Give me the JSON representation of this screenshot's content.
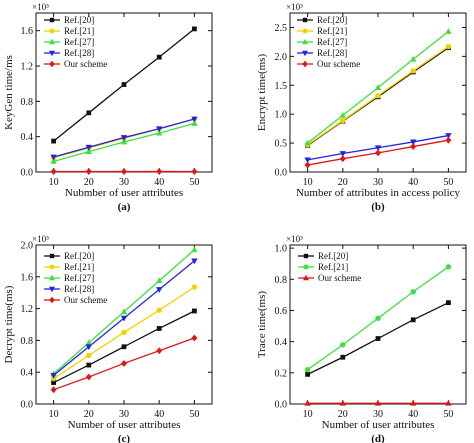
{
  "colors": {
    "ref20": "#111111",
    "ref21": "#f2d200",
    "ref27": "#3de03d",
    "ref28": "#2323e6",
    "ours": "#e01616",
    "axis": "#111111"
  },
  "chart_data": [
    {
      "type": "line",
      "panel_label": "(a)",
      "ylabel": "KeyGen time/ms",
      "xlabel": "Nubmber of user attributes",
      "multiplier": "×10³",
      "x": [
        10,
        20,
        30,
        40,
        50
      ],
      "xlim": [
        5,
        55
      ],
      "ylim": [
        0,
        1.8
      ],
      "xticks": [
        10,
        20,
        30,
        40,
        50
      ],
      "yticks": [
        0.0,
        0.4,
        0.8,
        1.2,
        1.6
      ],
      "ytick_labels": [
        "0.0",
        "0.4",
        "0.8",
        "1.2",
        "1.6"
      ],
      "legend_position": "top-left",
      "series": [
        {
          "name": "Ref.[20]",
          "key": "ref20",
          "marker": "square",
          "values": [
            0.35,
            0.67,
            0.99,
            1.3,
            1.62
          ]
        },
        {
          "name": "Ref.[21]",
          "key": "ref21",
          "marker": "circle",
          "values": [
            0.16,
            0.27,
            0.38,
            0.49,
            0.6
          ]
        },
        {
          "name": "Ref.[27]",
          "key": "ref27",
          "marker": "triangle-up",
          "values": [
            0.12,
            0.23,
            0.34,
            0.44,
            0.55
          ]
        },
        {
          "name": "Ref.[28]",
          "key": "ref28",
          "marker": "triangle-down",
          "values": [
            0.17,
            0.28,
            0.39,
            0.49,
            0.6
          ]
        },
        {
          "name": "Our scheme",
          "key": "ours",
          "marker": "diamond",
          "values": [
            0.005,
            0.005,
            0.005,
            0.005,
            0.005
          ]
        }
      ]
    },
    {
      "type": "line",
      "panel_label": "(b)",
      "ylabel": "Encrypt time(ms)",
      "xlabel": "Number of attributes in access policy",
      "multiplier": "×10³",
      "x": [
        10,
        20,
        30,
        40,
        50
      ],
      "xlim": [
        5,
        55
      ],
      "ylim": [
        0,
        2.75
      ],
      "xticks": [
        10,
        20,
        30,
        40,
        50
      ],
      "yticks": [
        0.0,
        0.5,
        1.0,
        1.5,
        2.0,
        2.5
      ],
      "ytick_labels": [
        "0.0",
        "0.5",
        "1.0",
        "1.5",
        "2.0",
        "2.5"
      ],
      "legend_position": "top-left",
      "series": [
        {
          "name": "Ref.[20]",
          "key": "ref20",
          "marker": "square",
          "values": [
            0.46,
            0.88,
            1.3,
            1.73,
            2.15
          ]
        },
        {
          "name": "Ref.[21]",
          "key": "ref21",
          "marker": "circle",
          "values": [
            0.47,
            0.89,
            1.32,
            1.75,
            2.17
          ]
        },
        {
          "name": "Ref.[27]",
          "key": "ref27",
          "marker": "triangle-up",
          "values": [
            0.5,
            0.98,
            1.46,
            1.95,
            2.43
          ]
        },
        {
          "name": "Ref.[28]",
          "key": "ref28",
          "marker": "triangle-down",
          "values": [
            0.21,
            0.32,
            0.42,
            0.52,
            0.63
          ]
        },
        {
          "name": "Our scheme",
          "key": "ours",
          "marker": "diamond",
          "values": [
            0.12,
            0.23,
            0.33,
            0.44,
            0.55
          ]
        }
      ]
    },
    {
      "type": "line",
      "panel_label": "(c)",
      "ylabel": "Decrypt time(ms)",
      "xlabel": "Number of user attributes",
      "multiplier": "×10³",
      "x": [
        10,
        20,
        30,
        40,
        50
      ],
      "xlim": [
        5,
        55
      ],
      "ylim": [
        0,
        2.0
      ],
      "xticks": [
        10,
        20,
        30,
        40,
        50
      ],
      "yticks": [
        0.0,
        0.4,
        0.8,
        1.2,
        1.6,
        2.0
      ],
      "ytick_labels": [
        "0.0",
        "0.4",
        "0.8",
        "1.2",
        "1.6",
        "2.0"
      ],
      "legend_position": "top-left",
      "series": [
        {
          "name": "Ref.[20]",
          "key": "ref20",
          "marker": "square",
          "values": [
            0.27,
            0.49,
            0.72,
            0.95,
            1.17
          ]
        },
        {
          "name": "Ref.[21]",
          "key": "ref21",
          "marker": "circle",
          "values": [
            0.32,
            0.61,
            0.9,
            1.18,
            1.47
          ]
        },
        {
          "name": "Ref.[27]",
          "key": "ref27",
          "marker": "triangle-up",
          "values": [
            0.38,
            0.77,
            1.16,
            1.55,
            1.94
          ]
        },
        {
          "name": "Ref.[28]",
          "key": "ref28",
          "marker": "triangle-down",
          "values": [
            0.36,
            0.72,
            1.08,
            1.44,
            1.8
          ]
        },
        {
          "name": "Our scheme",
          "key": "ours",
          "marker": "diamond",
          "values": [
            0.18,
            0.34,
            0.51,
            0.67,
            0.83
          ]
        }
      ]
    },
    {
      "type": "line",
      "panel_label": "(d)",
      "ylabel": "Trace time(ms)",
      "xlabel": "Number of user attributes",
      "multiplier": "×10³",
      "x": [
        10,
        20,
        30,
        40,
        50
      ],
      "xlim": [
        5,
        55
      ],
      "ylim": [
        0,
        1.02
      ],
      "xticks": [
        10,
        20,
        30,
        40,
        50
      ],
      "yticks": [
        0.0,
        0.2,
        0.4,
        0.6,
        0.8,
        1.0
      ],
      "ytick_labels": [
        "0.0",
        "0.2",
        "0.4",
        "0.6",
        "0.8",
        "1.0"
      ],
      "legend_position": "top-left",
      "series": [
        {
          "name": "Ref.[20]",
          "key": "ref20",
          "marker": "square",
          "values": [
            0.19,
            0.3,
            0.42,
            0.54,
            0.65
          ]
        },
        {
          "name": "Ref.[21]",
          "key": "ref27",
          "marker": "circle",
          "values": [
            0.22,
            0.38,
            0.55,
            0.72,
            0.88
          ]
        },
        {
          "name": "Our scheme",
          "key": "ours",
          "marker": "triangle-up",
          "values": [
            0.005,
            0.005,
            0.005,
            0.005,
            0.005
          ]
        }
      ]
    }
  ]
}
